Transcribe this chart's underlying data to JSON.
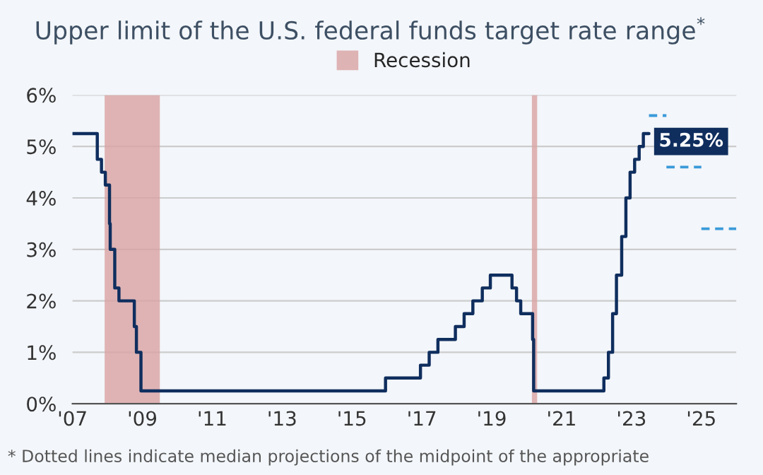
{
  "chart_data": {
    "type": "step",
    "title": "Upper limit of the U.S. federal funds target rate range$^{*}$",
    "annotations": [
      "* Dotted lines indicate median projections of the midpoint of the appropriate"
    ],
    "series": [
      {
        "color": "#0f2e5e",
        "line_style": "solid",
        "x": [
          2007.0,
          2007.71,
          2007.83,
          2007.94,
          2008.06,
          2008.08,
          2008.21,
          2008.33,
          2008.77,
          2008.83,
          2008.96,
          2015.96,
          2016.96,
          2017.21,
          2017.46,
          2017.96,
          2018.21,
          2018.46,
          2018.73,
          2018.96,
          2019.58,
          2019.71,
          2019.83,
          2020.17,
          2020.2,
          2022.21,
          2022.34,
          2022.46,
          2022.57,
          2022.72,
          2022.84,
          2022.96,
          2023.09,
          2023.22,
          2023.34,
          2023.5
        ],
        "values": [
          5.25,
          4.75,
          4.5,
          4.25,
          3.5,
          3.0,
          2.25,
          2.0,
          1.5,
          1.0,
          0.25,
          0.5,
          0.75,
          1.0,
          1.25,
          1.5,
          1.75,
          2.0,
          2.25,
          2.5,
          2.25,
          2.0,
          1.75,
          1.25,
          0.25,
          0.5,
          1.0,
          1.75,
          2.5,
          3.25,
          4.0,
          4.5,
          4.75,
          5.0,
          5.25,
          5.25
        ],
        "value_labels": [
          null,
          null,
          null,
          null,
          null,
          null,
          null,
          null,
          null,
          null,
          null,
          null,
          null,
          null,
          null,
          null,
          null,
          null,
          null,
          null,
          null,
          null,
          null,
          null,
          null,
          null,
          null,
          null,
          null,
          null,
          null,
          null,
          null,
          null,
          null,
          "5.25%"
        ]
      },
      {
        "type": "line",
        "color": "#3a9ad9",
        "line_style": "dashed",
        "x": [
          2023.5,
          2024.0
        ],
        "values": [
          5.6,
          5.6
        ]
      },
      {
        "type": "line",
        "color": "#3a9ad9",
        "line_style": "dashed",
        "x": [
          2024.0,
          2025.0
        ],
        "values": [
          4.6,
          4.6
        ]
      },
      {
        "type": "line",
        "color": "#3a9ad9",
        "line_style": "dashed",
        "x": [
          2025.0,
          2026.0
        ],
        "values": [
          3.4,
          3.4
        ]
      }
    ],
    "bands": [
      {
        "axis": "x",
        "from": 2007.92,
        "to": 2009.5,
        "label": "Recession",
        "color": "#d9a3a3"
      },
      {
        "axis": "x",
        "from": 2020.15,
        "to": 2020.3,
        "color": "#d9a3a3"
      }
    ],
    "xlim": [
      2007,
      2026
    ],
    "xticks": [
      {
        "value": 2007,
        "label": "'07"
      },
      {
        "value": 2009,
        "label": "'09"
      },
      {
        "value": 2011,
        "label": "'11"
      },
      {
        "value": 2013,
        "label": "'13"
      },
      {
        "value": 2015,
        "label": "'15"
      },
      {
        "value": 2017,
        "label": "'17"
      },
      {
        "value": 2019,
        "label": "'19"
      },
      {
        "value": 2021,
        "label": "'21"
      },
      {
        "value": 2023,
        "label": "'23"
      },
      {
        "value": 2025,
        "label": "'25"
      }
    ],
    "ylim": [
      0,
      6
    ],
    "yticks": [
      {
        "value": 0,
        "label": "0%"
      },
      {
        "value": 1,
        "label": "1%"
      },
      {
        "value": 2,
        "label": "2%"
      },
      {
        "value": 3,
        "label": "3%"
      },
      {
        "value": 4,
        "label": "4%"
      },
      {
        "value": 5,
        "label": "5%"
      },
      {
        "value": 6,
        "label": "6%"
      }
    ],
    "grid": "y",
    "legend": "top"
  }
}
